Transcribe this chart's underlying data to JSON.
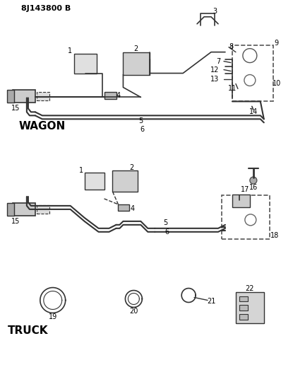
{
  "title": "8J143800 B",
  "background_color": "#ffffff",
  "line_color": "#333333",
  "text_color": "#000000",
  "wagon_label": "WAGON",
  "truck_label": "TRUCK",
  "figsize": [
    3.98,
    5.33
  ],
  "dpi": 100
}
